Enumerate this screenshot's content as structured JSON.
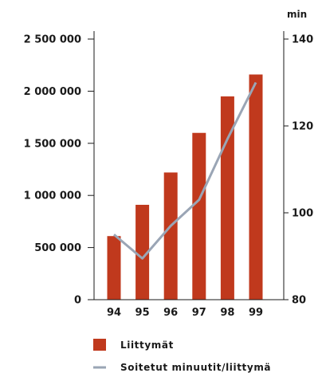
{
  "chart_data": {
    "type": "bar",
    "categories": [
      "94",
      "95",
      "96",
      "97",
      "98",
      "99"
    ],
    "series": [
      {
        "name": "Liittymät",
        "type": "bar",
        "axis": "left",
        "color": "#c0391d",
        "values": [
          610000,
          910000,
          1220000,
          1600000,
          1950000,
          2160000
        ]
      },
      {
        "name": "Soitetut minuutit/liittymä",
        "type": "line",
        "axis": "right",
        "color": "#9aa5b5",
        "values": [
          95,
          89.5,
          97,
          103,
          117,
          130
        ]
      }
    ],
    "y_left": {
      "ylim": [
        0,
        2500000
      ],
      "ticks": [
        0,
        500000,
        1000000,
        1500000,
        2000000,
        2500000
      ],
      "tick_labels": [
        "0",
        "500 000",
        "1 000 000",
        "1 500 000",
        "2 000 000",
        "2 500 000"
      ]
    },
    "y_right": {
      "unit": "min",
      "ylim": [
        80,
        140
      ],
      "ticks": [
        80,
        100,
        120,
        140
      ],
      "tick_labels": [
        "80",
        "100",
        "120",
        "140"
      ]
    },
    "grid": false,
    "legend": "bottom"
  }
}
